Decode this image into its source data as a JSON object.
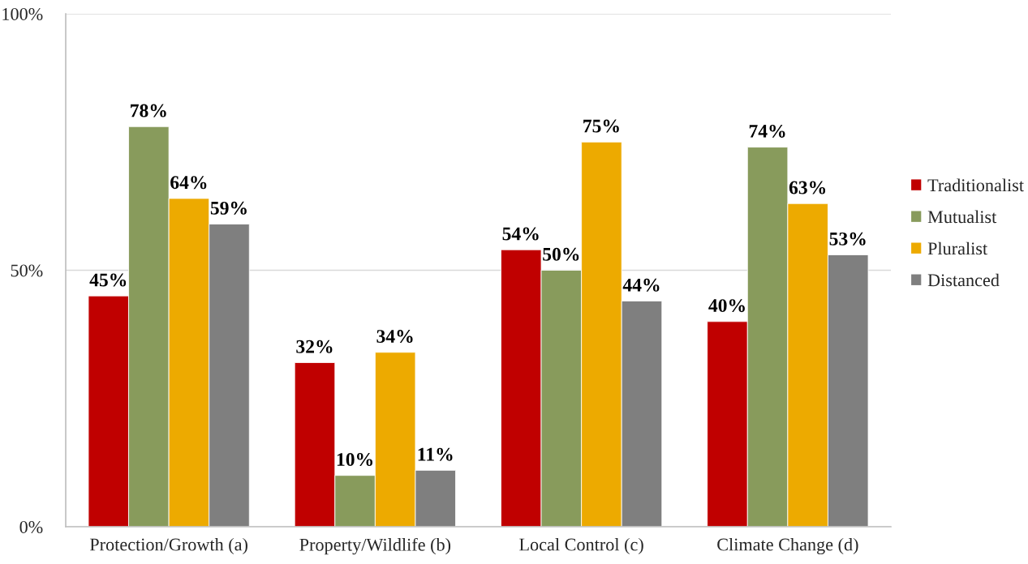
{
  "chart_data": {
    "type": "bar",
    "categories": [
      "Protection/Growth (a)",
      "Property/Wildlife (b)",
      "Local Control (c)",
      "Climate Change (d)"
    ],
    "series": [
      {
        "name": "Traditionalist",
        "color": "#c00000",
        "values": [
          45,
          32,
          54,
          40
        ],
        "value_labels": [
          "45%",
          "32%",
          "54%",
          "40%"
        ]
      },
      {
        "name": "Mutualist",
        "color": "#889b5c",
        "values": [
          78,
          10,
          50,
          74
        ],
        "value_labels": [
          "78%",
          "10%",
          "50%",
          "74%"
        ]
      },
      {
        "name": "Pluralist",
        "color": "#edaa00",
        "values": [
          64,
          34,
          75,
          63
        ],
        "value_labels": [
          "64%",
          "34%",
          "75%",
          "63%"
        ]
      },
      {
        "name": "Distanced",
        "color": "#7f7f7f",
        "values": [
          59,
          11,
          44,
          53
        ],
        "value_labels": [
          "59%",
          "11%",
          "44%",
          "53%"
        ]
      }
    ],
    "ylim": [
      0,
      100
    ],
    "yticks": [
      {
        "value": 0,
        "label": "0%"
      },
      {
        "value": 50,
        "label": "50%"
      },
      {
        "value": 100,
        "label": "100%"
      }
    ],
    "grid": "y",
    "legend": "right"
  }
}
